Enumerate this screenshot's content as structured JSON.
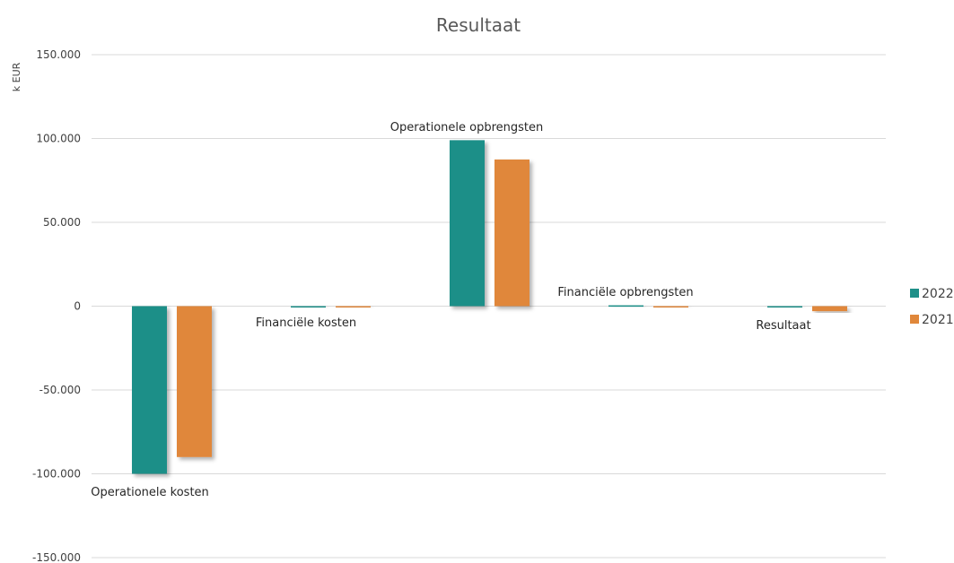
{
  "chart_data": {
    "type": "bar",
    "title": "Resultaat",
    "ylabel": "k EUR",
    "xlabel": "",
    "ylim": [
      -150000,
      150000
    ],
    "yticks": [
      150000,
      100000,
      50000,
      0,
      -50000,
      -100000,
      -150000
    ],
    "ytick_labels": [
      "150.000",
      "100.000",
      "50.000",
      "0",
      "-50.000",
      "-100.000",
      "-150.000"
    ],
    "grid": true,
    "legend_position": "right",
    "categories": [
      "Operationele kosten",
      "Financiële kosten",
      "Operationele opbrengsten",
      "Financiële opbrengsten",
      "Resultaat"
    ],
    "series": [
      {
        "name": "2022",
        "color": "#1e8f88",
        "values": [
          -100000,
          -300,
          99000,
          500,
          -200
        ]
      },
      {
        "name": "2021",
        "color": "#e0873a",
        "values": [
          -90000,
          -400,
          87500,
          -200,
          -3000
        ]
      }
    ]
  }
}
